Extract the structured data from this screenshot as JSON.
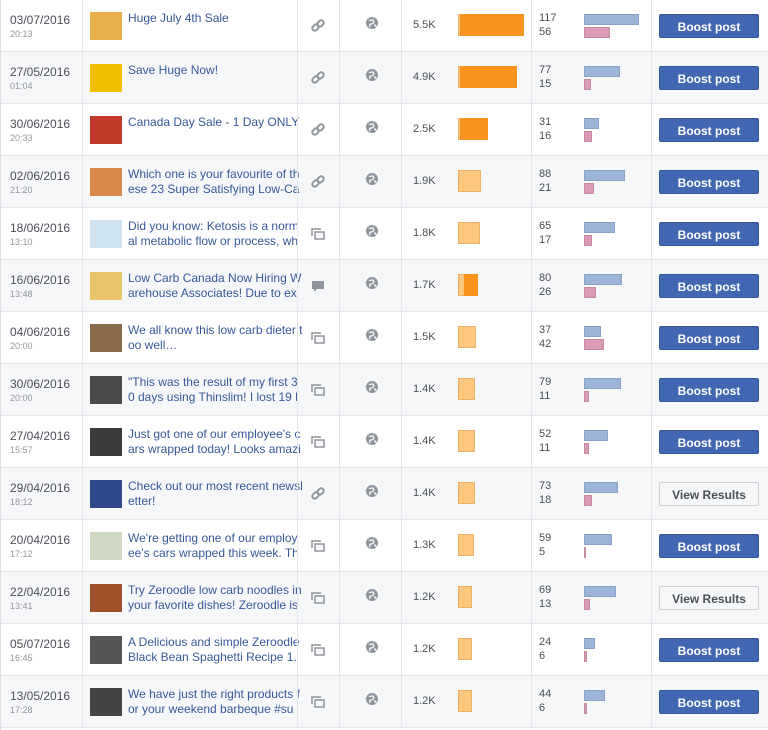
{
  "icons": {
    "link": "link",
    "photo": "photo",
    "status": "status"
  },
  "rows": [
    {
      "date": "03/07/2016",
      "time": "20:13",
      "text": [
        "Huge July 4th Sale"
      ],
      "type": "link",
      "reach": {
        "value": 5500,
        "label": "5.5K"
      },
      "paid": 5300,
      "clicks": 117,
      "reactions": 56,
      "button": "Boost post"
    },
    {
      "date": "27/05/2016",
      "time": "01:04",
      "text": [
        "Save Huge Now!"
      ],
      "type": "link",
      "reach": {
        "value": 4900,
        "label": "4.9K"
      },
      "paid": 4700,
      "clicks": 77,
      "reactions": 15,
      "button": "Boost post"
    },
    {
      "date": "30/06/2016",
      "time": "20:33",
      "text": [
        "Canada Day Sale - 1 Day ONLY"
      ],
      "type": "link",
      "reach": {
        "value": 2500,
        "label": "2.5K"
      },
      "paid": 2300,
      "clicks": 31,
      "reactions": 16,
      "button": "Boost post"
    },
    {
      "date": "02/06/2016",
      "time": "21:20",
      "text": [
        "Which one is your favourite of th",
        "ese 23 Super Satisfying Low-Ca"
      ],
      "type": "link",
      "reach": {
        "value": 1900,
        "label": "1.9K"
      },
      "paid": 0,
      "clicks": 88,
      "reactions": 21,
      "button": "Boost post"
    },
    {
      "date": "18/06/2016",
      "time": "13:10",
      "text": [
        "Did you know: Ketosis is a norm",
        "al metabolic flow or process, wh"
      ],
      "type": "photo",
      "reach": {
        "value": 1800,
        "label": "1.8K"
      },
      "paid": 0,
      "clicks": 65,
      "reactions": 17,
      "button": "Boost post"
    },
    {
      "date": "16/06/2016",
      "time": "13:48",
      "text": [
        "Low Carb Canada Now Hiring W",
        "arehouse Associates! Due to ex"
      ],
      "type": "status",
      "reach": {
        "value": 1700,
        "label": "1.7K"
      },
      "paid": 1200,
      "clicks": 80,
      "reactions": 26,
      "button": "Boost post"
    },
    {
      "date": "04/06/2016",
      "time": "20:00",
      "text": [
        "We all know this low carb dieter t",
        "oo well…"
      ],
      "type": "photo",
      "reach": {
        "value": 1500,
        "label": "1.5K"
      },
      "paid": 0,
      "clicks": 37,
      "reactions": 42,
      "button": "Boost post"
    },
    {
      "date": "30/06/2016",
      "time": "20:00",
      "text": [
        "\"This was the result of my first 3",
        "0 days using Thinslim! I lost 19 l"
      ],
      "type": "photo",
      "reach": {
        "value": 1400,
        "label": "1.4K"
      },
      "paid": 0,
      "clicks": 79,
      "reactions": 11,
      "button": "Boost post"
    },
    {
      "date": "27/04/2016",
      "time": "15:57",
      "text": [
        "Just got one of our employee's c",
        "ars wrapped today! Looks amazi"
      ],
      "type": "photo",
      "reach": {
        "value": 1400,
        "label": "1.4K"
      },
      "paid": 0,
      "clicks": 52,
      "reactions": 11,
      "button": "Boost post"
    },
    {
      "date": "29/04/2016",
      "time": "18:12",
      "text": [
        "Check out our most recent newsl",
        "etter!"
      ],
      "type": "link",
      "reach": {
        "value": 1400,
        "label": "1.4K"
      },
      "paid": 0,
      "clicks": 73,
      "reactions": 18,
      "button": "View Results"
    },
    {
      "date": "20/04/2016",
      "time": "17:12",
      "text": [
        "We're getting one of our employ",
        "ee's cars wrapped this week. Th"
      ],
      "type": "photo",
      "reach": {
        "value": 1300,
        "label": "1.3K"
      },
      "paid": 0,
      "clicks": 59,
      "reactions": 5,
      "button": "Boost post"
    },
    {
      "date": "22/04/2016",
      "time": "13:41",
      "text": [
        "Try Zeroodle low carb noodles in",
        "your favorite dishes! Zeroodle is"
      ],
      "type": "photo",
      "reach": {
        "value": 1200,
        "label": "1.2K"
      },
      "paid": 0,
      "clicks": 69,
      "reactions": 13,
      "button": "View Results"
    },
    {
      "date": "05/07/2016",
      "time": "16:45",
      "text": [
        "A Delicious and simple Zeroodle",
        "Black Bean Spaghetti Recipe 1."
      ],
      "type": "photo",
      "reach": {
        "value": 1200,
        "label": "1.2K"
      },
      "paid": 0,
      "clicks": 24,
      "reactions": 6,
      "button": "Boost post"
    },
    {
      "date": "13/05/2016",
      "time": "17:28",
      "text": [
        "We have just the right products f",
        "or your weekend barbeque #su"
      ],
      "type": "photo",
      "reach": {
        "value": 1200,
        "label": "1.2K"
      },
      "paid": 0,
      "clicks": 44,
      "reactions": 6,
      "button": "Boost post"
    }
  ]
}
